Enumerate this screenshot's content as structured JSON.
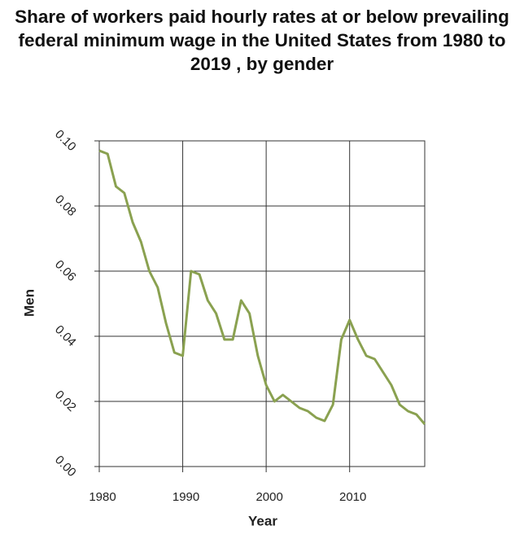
{
  "chart_data": {
    "type": "line",
    "title": "Share of workers paid hourly rates at or below prevailing federal minimum wage in the United States from 1980 to 2019 , by gender",
    "x_label": "Year",
    "y_label": "Men",
    "x": [
      1980,
      1981,
      1982,
      1983,
      1984,
      1985,
      1986,
      1987,
      1988,
      1989,
      1990,
      1991,
      1992,
      1993,
      1994,
      1995,
      1996,
      1997,
      1998,
      1999,
      2000,
      2001,
      2002,
      2003,
      2004,
      2005,
      2006,
      2007,
      2008,
      2009,
      2010,
      2011,
      2012,
      2013,
      2014,
      2015,
      2016,
      2017,
      2018,
      2019
    ],
    "series": [
      {
        "name": "Men",
        "color": "#8aa150",
        "values": [
          0.097,
          0.096,
          0.086,
          0.084,
          0.075,
          0.069,
          0.06,
          0.055,
          0.044,
          0.035,
          0.034,
          0.06,
          0.059,
          0.051,
          0.047,
          0.039,
          0.039,
          0.051,
          0.047,
          0.034,
          0.025,
          0.02,
          0.022,
          0.02,
          0.018,
          0.017,
          0.015,
          0.014,
          0.019,
          0.039,
          0.045,
          0.039,
          0.034,
          0.033,
          0.029,
          0.025,
          0.019,
          0.017,
          0.016,
          0.013
        ]
      }
    ],
    "xlim": [
      1980,
      2019
    ],
    "xticks": [
      1980,
      1990,
      2000,
      2010
    ],
    "ylim": [
      0,
      0.1
    ],
    "yticks": [
      {
        "value": 0,
        "label": "0.00"
      },
      0.02,
      0.04,
      0.06,
      0.08,
      {
        "value": 0.1,
        "label": "0.10"
      }
    ],
    "grid": true
  }
}
